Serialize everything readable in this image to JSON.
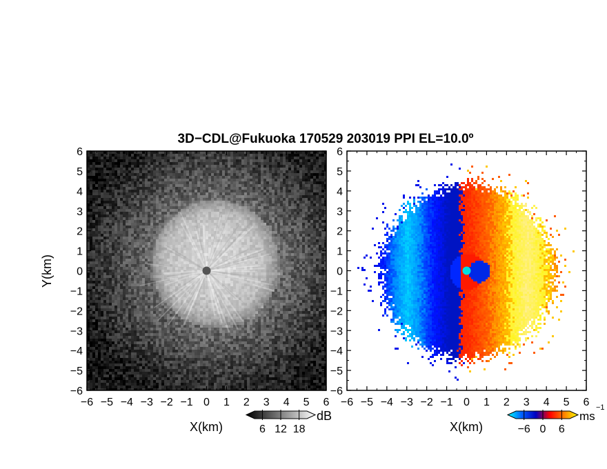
{
  "title": "3D−CDL@Fukuoka 170529 203019 PPI EL=10.0º",
  "chart_data": [
    {
      "type": "heatmap",
      "panel": "left",
      "quantity": "signal intensity",
      "xlabel": "X(km)",
      "ylabel": "Y(km)",
      "xlim": [
        -6,
        6
      ],
      "ylim": [
        -6,
        6
      ],
      "x_ticks": [
        -6,
        -5,
        -4,
        -3,
        -2,
        -1,
        0,
        1,
        2,
        3,
        4,
        5,
        6
      ],
      "y_ticks": [
        -6,
        -5,
        -4,
        -3,
        -2,
        -1,
        0,
        1,
        2,
        3,
        4,
        5,
        6
      ],
      "x_tick_labels": [
        "−6",
        "−5",
        "−4",
        "−3",
        "−2",
        "−1",
        "0",
        "1",
        "2",
        "3",
        "4",
        "5",
        "6"
      ],
      "y_tick_labels": [
        "−6",
        "−5",
        "−4",
        "−3",
        "−2",
        "−1",
        "0",
        "1",
        "2",
        "3",
        "4",
        "5",
        "6"
      ],
      "colorbar": {
        "unit": "dB",
        "ticks": [
          6,
          12,
          18
        ],
        "tick_labels": [
          "6",
          "12",
          "18"
        ],
        "colormap": "grayscale",
        "colors": [
          "#000000",
          "#ffffff"
        ]
      },
      "description_data": {
        "bright_disk_radius_km": 3.2,
        "bright_disk_center_km": [
          0.4,
          0.4
        ],
        "center_marker_km": [
          0,
          0
        ]
      }
    },
    {
      "type": "heatmap",
      "panel": "right",
      "quantity": "Doppler velocity",
      "xlabel": "X(km)",
      "xlim": [
        -6,
        6
      ],
      "ylim": [
        -6,
        6
      ],
      "x_ticks": [
        -6,
        -5,
        -4,
        -3,
        -2,
        -1,
        0,
        1,
        2,
        3,
        4,
        5,
        6
      ],
      "y_ticks": [
        -6,
        -5,
        -4,
        -3,
        -2,
        -1,
        0,
        1,
        2,
        3,
        4,
        5,
        6
      ],
      "x_tick_labels": [
        "−6",
        "−5",
        "−4",
        "−3",
        "−2",
        "−1",
        "0",
        "1",
        "2",
        "3",
        "4",
        "5",
        "6"
      ],
      "y_tick_labels": [
        "−6",
        "−5",
        "−4",
        "−3",
        "−2",
        "−1",
        "0",
        "1",
        "2",
        "3",
        "4",
        "5",
        "6"
      ],
      "colorbar": {
        "unit": "ms",
        "unit_superscript": "−1",
        "ticks": [
          -6,
          0,
          6
        ],
        "tick_labels": [
          "−6",
          "0",
          "6"
        ],
        "colormap": "diverging",
        "colors": [
          "#00ffff",
          "#0060ff",
          "#0000c0",
          "#ff0000",
          "#ff8000",
          "#ffff00"
        ]
      },
      "description_data": {
        "negative_side": "west (X<0)",
        "positive_side": "east (X>0)",
        "echo_radius_km": 4.3,
        "center_marker_km": [
          0,
          0
        ]
      }
    }
  ]
}
